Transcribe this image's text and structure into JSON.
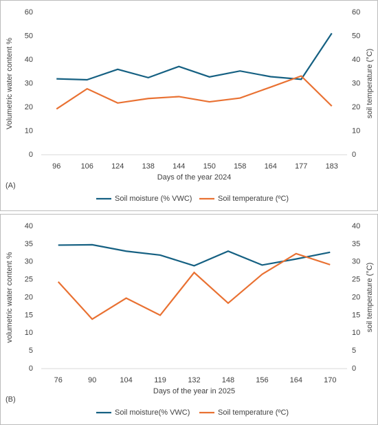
{
  "chart_data": [
    {
      "type": "line",
      "panel_label": "(A)",
      "categories": [
        "96",
        "106",
        "124",
        "138",
        "144",
        "150",
        "158",
        "164",
        "177",
        "183"
      ],
      "x_label": "Days of the year 2024",
      "y_label": "Volumetric water content %",
      "y2_label": "soil temperature (°C)",
      "ylim": [
        0,
        60
      ],
      "yticks": [
        0,
        10,
        20,
        30,
        40,
        50,
        60
      ],
      "y2lim": [
        0,
        60
      ],
      "y2ticks": [
        0,
        10,
        20,
        30,
        40,
        50,
        60
      ],
      "legend": "bottom",
      "series": [
        {
          "name": "Soil moisture (% VWC)",
          "color": "#156082",
          "values": [
            32,
            31.6,
            36,
            32.5,
            37.2,
            32.8,
            35.3,
            32.9,
            31.8,
            51.2
          ]
        },
        {
          "name": "Soil temperature (ºC)",
          "color": "#e97132",
          "axis": "y2",
          "values": [
            19.3,
            27.8,
            21.8,
            23.7,
            24.5,
            22.3,
            23.9,
            28.5,
            33.2,
            20.5
          ]
        }
      ]
    },
    {
      "type": "line",
      "panel_label": "(B)",
      "categories": [
        "76",
        "90",
        "104",
        "119",
        "132",
        "148",
        "156",
        "164",
        "170"
      ],
      "x_label": "Days of the year in 2025",
      "y_label": "volumetric water content %",
      "y2_label": "soil temperature (°C)",
      "ylim": [
        0,
        40
      ],
      "yticks": [
        0,
        5,
        10,
        15,
        20,
        25,
        30,
        35,
        40
      ],
      "y2lim": [
        0,
        40
      ],
      "y2ticks": [
        0,
        5,
        10,
        15,
        20,
        25,
        30,
        35,
        40
      ],
      "legend": "bottom",
      "series": [
        {
          "name": "Soil moisture(% VWC)",
          "color": "#156082",
          "values": [
            34.7,
            34.8,
            33,
            31.9,
            28.9,
            33,
            29.1,
            30.8,
            32.7
          ]
        },
        {
          "name": "Soil temperature (ºC)",
          "color": "#e97132",
          "axis": "y2",
          "values": [
            24.4,
            13.9,
            19.8,
            15.0,
            27.0,
            18.4,
            26.5,
            32.3,
            29.2
          ]
        }
      ]
    }
  ]
}
